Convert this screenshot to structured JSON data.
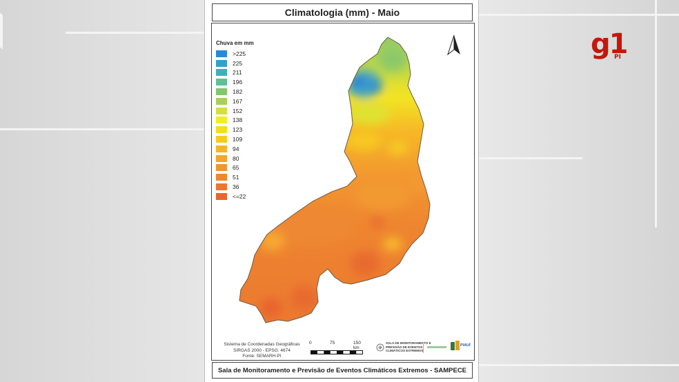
{
  "map": {
    "title": "Climatologia (mm) - Maio",
    "footer": "Sala de Monitoramento e Previsão de Eventos Climáticos Extremos - SAMPECE",
    "legend": {
      "title": "Chuva em mm",
      "items": [
        {
          "label": ">225",
          "color": "#2a8ad8"
        },
        {
          "label": "225",
          "color": "#35a0cf"
        },
        {
          "label": "211",
          "color": "#3fb0b8"
        },
        {
          "label": "196",
          "color": "#5fbf95"
        },
        {
          "label": "182",
          "color": "#84c66e"
        },
        {
          "label": "167",
          "color": "#a8d054"
        },
        {
          "label": "152",
          "color": "#d3e23a"
        },
        {
          "label": "138",
          "color": "#f1ef24"
        },
        {
          "label": "123",
          "color": "#f6de1c"
        },
        {
          "label": "109",
          "color": "#f7cb1e"
        },
        {
          "label": "94",
          "color": "#f6b624"
        },
        {
          "label": "80",
          "color": "#f5a52a"
        },
        {
          "label": "65",
          "color": "#f3942e"
        },
        {
          "label": "51",
          "color": "#f08530"
        },
        {
          "label": "36",
          "color": "#ec7631"
        },
        {
          "label": "<=22",
          "color": "#e8652f"
        }
      ]
    },
    "coord_system": {
      "line1": "Sistema de Coordenadas Geográficas",
      "line2": "SIRGAS 2000 - EPSG: 4674",
      "line3": "Fonte: SEMARH-PI"
    },
    "scale": {
      "labels": [
        "0",
        "75",
        "150 km"
      ]
    },
    "logos": {
      "sampece_line1": "SALA DE MONITORAMENTO E",
      "sampece_line2": "PREVISÃO DE EVENTOS",
      "sampece_line3": "CLIMÁTICOS EXTREMOS",
      "state": "PIAUÍ"
    }
  },
  "watermark": {
    "brand": "g1",
    "region": "PI"
  }
}
